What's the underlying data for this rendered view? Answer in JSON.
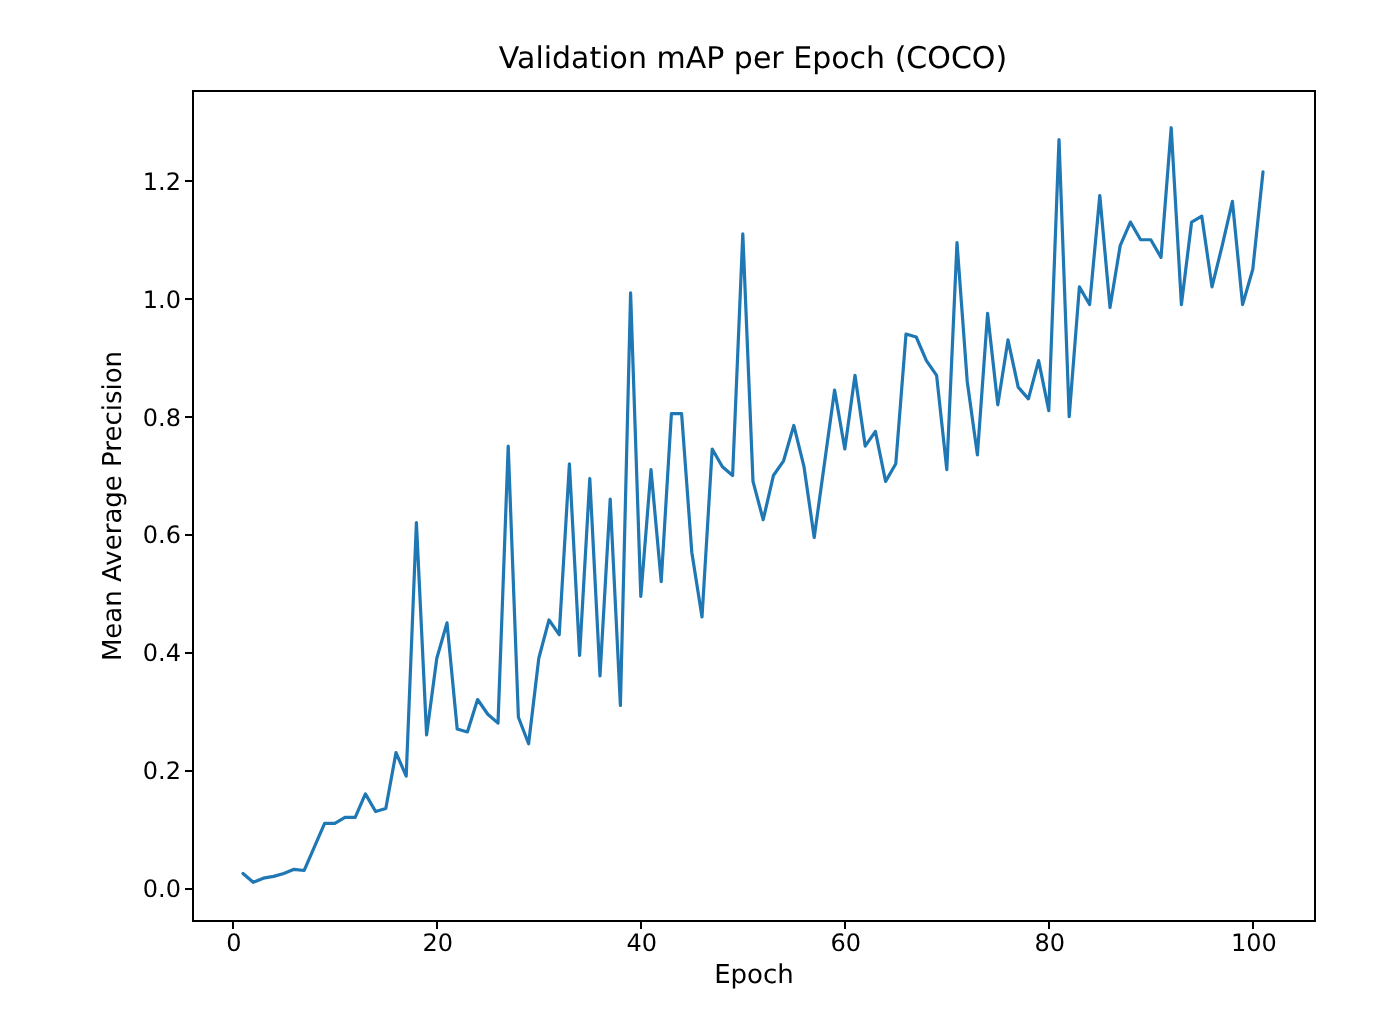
{
  "chart_data": {
    "type": "line",
    "title": "Validation mAP per Epoch (COCO)",
    "xlabel": "Epoch",
    "ylabel": "Mean Average Precision",
    "x": [
      1,
      2,
      3,
      4,
      5,
      6,
      7,
      8,
      9,
      10,
      11,
      12,
      13,
      14,
      15,
      16,
      17,
      18,
      19,
      20,
      21,
      22,
      23,
      24,
      25,
      26,
      27,
      28,
      29,
      30,
      31,
      32,
      33,
      34,
      35,
      36,
      37,
      38,
      39,
      40,
      41,
      42,
      43,
      44,
      45,
      46,
      47,
      48,
      49,
      50,
      51,
      52,
      53,
      54,
      55,
      56,
      57,
      58,
      59,
      60,
      61,
      62,
      63,
      64,
      65,
      66,
      67,
      68,
      69,
      70,
      71,
      72,
      73,
      74,
      75,
      76,
      77,
      78,
      79,
      80,
      81,
      82,
      83,
      84,
      85,
      86,
      87,
      88,
      89,
      90,
      91,
      92,
      93,
      94,
      95,
      96,
      97,
      98,
      99,
      100,
      101
    ],
    "series": [
      {
        "color": "#1f77b4",
        "values": [
          0.025,
          0.01,
          0.017,
          0.02,
          0.025,
          0.032,
          0.03,
          0.07,
          0.11,
          0.11,
          0.12,
          0.12,
          0.16,
          0.13,
          0.135,
          0.23,
          0.19,
          0.62,
          0.26,
          0.39,
          0.45,
          0.27,
          0.265,
          0.32,
          0.295,
          0.28,
          0.75,
          0.29,
          0.245,
          0.39,
          0.455,
          0.43,
          0.72,
          0.395,
          0.695,
          0.36,
          0.66,
          0.31,
          1.01,
          0.495,
          0.71,
          0.52,
          0.805,
          0.805,
          0.57,
          0.46,
          0.745,
          0.715,
          0.7,
          1.11,
          0.69,
          0.625,
          0.7,
          0.725,
          0.785,
          0.715,
          0.595,
          0.72,
          0.845,
          0.745,
          0.87,
          0.75,
          0.775,
          0.69,
          0.72,
          0.94,
          0.935,
          0.895,
          0.87,
          0.71,
          1.095,
          0.86,
          0.735,
          0.975,
          0.82,
          0.93,
          0.85,
          0.83,
          0.895,
          0.81,
          1.27,
          0.8,
          1.02,
          0.99,
          1.175,
          0.985,
          1.09,
          1.13,
          1.1,
          1.1,
          1.07,
          1.29,
          0.99,
          1.13,
          1.14,
          1.02,
          1.09,
          1.165,
          0.99,
          1.05,
          1.215
        ]
      }
    ],
    "xlim": [
      -4,
      106
    ],
    "ylim": [
      -0.054,
      1.354
    ],
    "xticks": [
      0,
      20,
      40,
      60,
      80,
      100
    ],
    "yticks": [
      {
        "value": 0,
        "label": "0.0"
      },
      {
        "value": 0.2,
        "label": "0.2"
      },
      {
        "value": 0.4,
        "label": "0.4"
      },
      {
        "value": 0.6,
        "label": "0.6"
      },
      {
        "value": 0.8,
        "label": "0.8"
      },
      {
        "value": 1,
        "label": "1.0"
      },
      {
        "value": 1.2,
        "label": "1.2"
      }
    ],
    "grid": false,
    "marker": "none",
    "line_style": "solid"
  }
}
